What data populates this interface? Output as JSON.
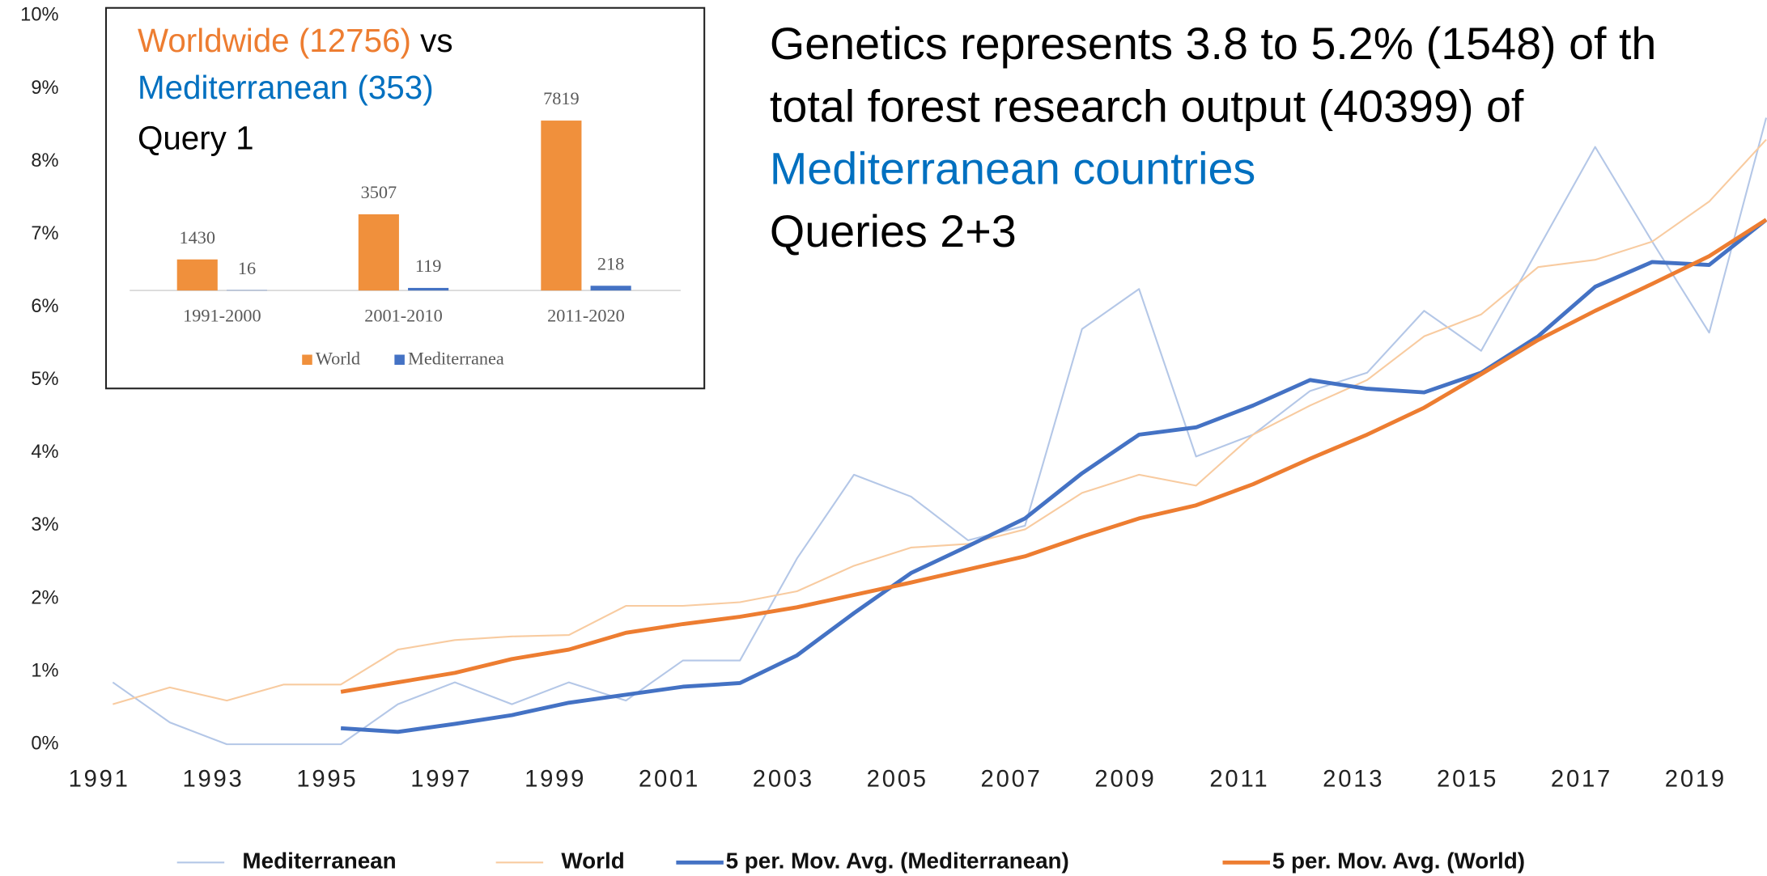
{
  "chart_data": [
    {
      "type": "line",
      "annotation": [
        "Genetics represents 3.8 to 5.2% (1548) of th",
        "total forest research output (40399) of",
        "Mediterranean countries",
        "Queries 2+3"
      ],
      "categories": [
        "1991",
        null,
        "1993",
        null,
        "1995",
        null,
        "1997",
        null,
        "1999",
        null,
        "2001",
        null,
        "2003",
        null,
        "2005",
        null,
        "2007",
        null,
        "2009",
        null,
        "2011",
        null,
        "2013",
        null,
        "2015",
        null,
        "2017",
        null,
        "2019",
        null
      ],
      "ylim": [
        0,
        10
      ],
      "yticks": [
        {
          "value": 0,
          "label": "0%"
        },
        {
          "value": 1,
          "label": "1%"
        },
        {
          "value": 2,
          "label": "2%"
        },
        {
          "value": 3,
          "label": "3%"
        },
        {
          "value": 4,
          "label": "4%"
        },
        {
          "value": 5,
          "label": "5%"
        },
        {
          "value": 6,
          "label": "6%"
        },
        {
          "value": 7,
          "label": "7%"
        },
        {
          "value": 8,
          "label": "8%"
        },
        {
          "value": 9,
          "label": "9%"
        },
        {
          "value": 10,
          "label": "10%"
        }
      ],
      "series": [
        {
          "name": "Mediterranean",
          "color": "#b4c7e7",
          "width": 1.5,
          "values": [
            0.85,
            0.3,
            0,
            0,
            0,
            0.55,
            0.85,
            0.55,
            0.85,
            0.6,
            1.15,
            1.15,
            2.55,
            3.7,
            3.4,
            2.8,
            3.0,
            5.7,
            6.25,
            3.95,
            4.25,
            4.85,
            5.1,
            5.95,
            5.4,
            6.8,
            8.2,
            6.9,
            5.65,
            8.6
          ]
        },
        {
          "name": "World",
          "color": "#f8cba0",
          "width": 1.5,
          "values": [
            0.55,
            0.78,
            0.6,
            0.82,
            0.82,
            1.3,
            1.43,
            1.48,
            1.5,
            1.9,
            1.9,
            1.95,
            2.1,
            2.45,
            2.7,
            2.75,
            2.95,
            3.45,
            3.7,
            3.55,
            4.25,
            4.65,
            5.0,
            5.6,
            5.9,
            6.55,
            6.65,
            6.9,
            7.45,
            8.3
          ]
        },
        {
          "name": "5 per. Mov. Avg. (Mediterranean)",
          "color": "#4472c4",
          "width": 3.5,
          "values": [
            null,
            null,
            null,
            null,
            0.22,
            0.17,
            0.28,
            0.4,
            0.57,
            0.68,
            0.79,
            0.84,
            1.22,
            1.8,
            2.35,
            2.72,
            3.1,
            3.72,
            4.25,
            4.35,
            4.65,
            5.0,
            4.88,
            4.83,
            5.1,
            5.6,
            6.28,
            6.62,
            6.58,
            7.2
          ]
        },
        {
          "name": "5 per. Mov. Avg. (World)",
          "color": "#ed7d31",
          "width": 3.5,
          "values": [
            null,
            null,
            null,
            null,
            0.72,
            0.85,
            0.98,
            1.17,
            1.3,
            1.53,
            1.65,
            1.75,
            1.88,
            2.05,
            2.22,
            2.4,
            2.58,
            2.85,
            3.1,
            3.28,
            3.57,
            3.92,
            4.25,
            4.62,
            5.08,
            5.55,
            5.95,
            6.32,
            6.7,
            7.2
          ]
        }
      ]
    },
    {
      "type": "bar",
      "title": [
        {
          "text": "Worldwide (12756)",
          "color": "#ed7d31"
        },
        {
          "text": " vs",
          "color": "#000000"
        },
        {
          "text": "Mediterranean (353)",
          "color": "#0070c0"
        },
        {
          "text": "Query 1",
          "color": "#000000"
        }
      ],
      "categories": [
        "1991-2000",
        "2001-2010",
        "2011-2020"
      ],
      "series": [
        {
          "name": "World",
          "color": "#f0903c",
          "values": [
            1430,
            3507,
            7819
          ]
        },
        {
          "name": "Mediterranea",
          "color": "#4472c4",
          "values": [
            16,
            119,
            218
          ]
        }
      ]
    }
  ]
}
